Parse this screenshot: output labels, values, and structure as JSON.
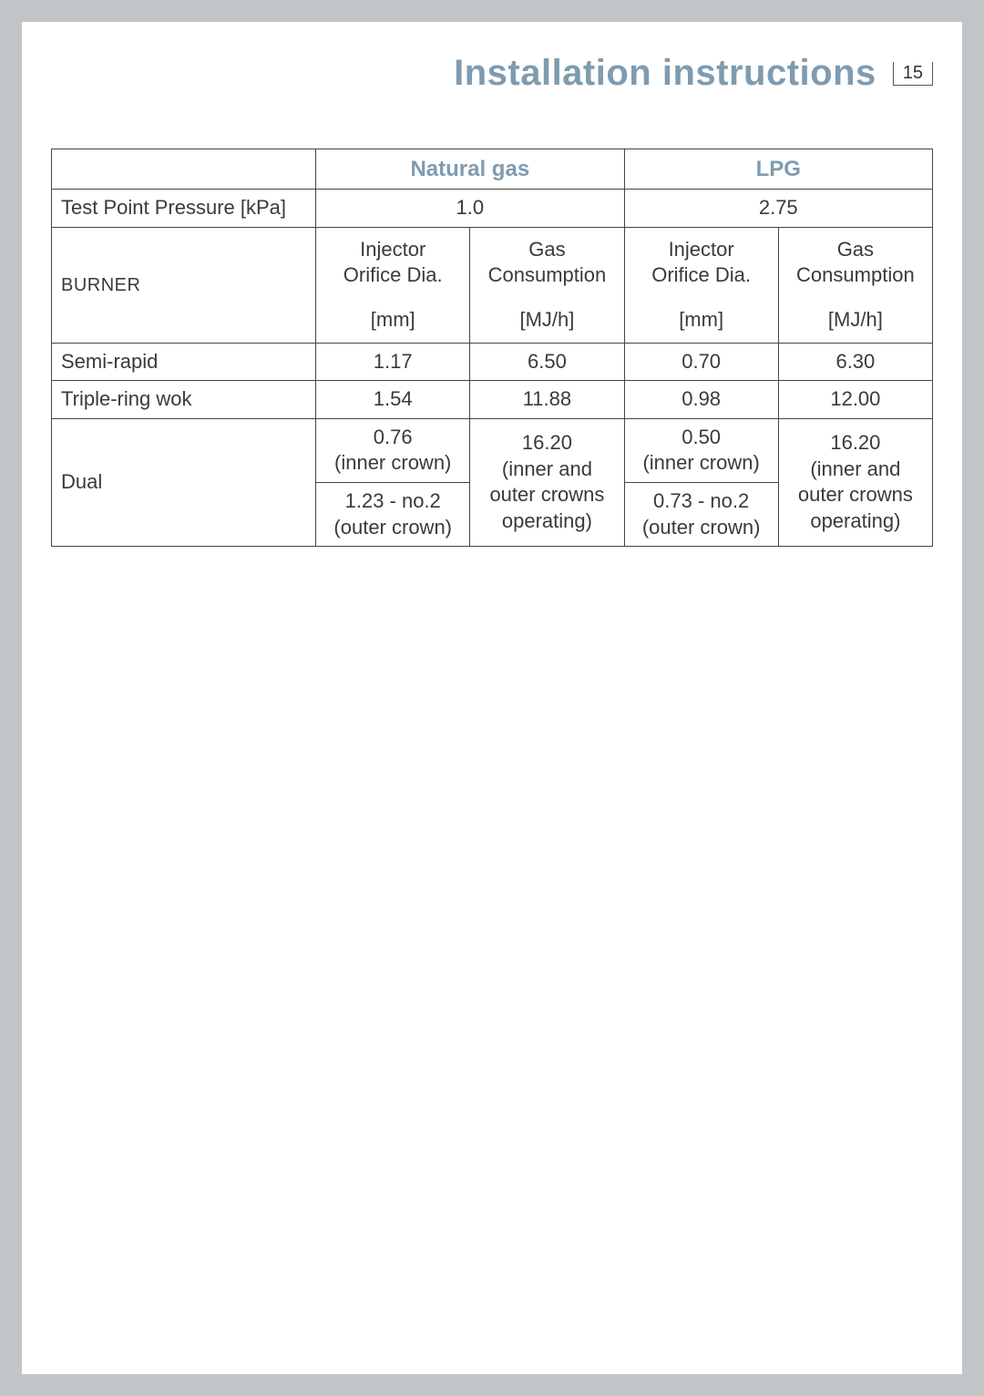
{
  "header": {
    "title": "Installation instructions",
    "page_number": "15"
  },
  "colors": {
    "accent": "#7f9bb0",
    "page_bg": "#ffffff",
    "outer_bg": "#c2c5c8",
    "border": "#444444",
    "text": "#3a3a3a"
  },
  "table": {
    "gas_types": {
      "natural": "Natural gas",
      "lpg": "LPG"
    },
    "pressure_row": {
      "label": "Test Point Pressure [kPa]",
      "natural": "1.0",
      "lpg": "2.75"
    },
    "burner_header": {
      "label": "BURNER",
      "injector_line1": "Injector",
      "injector_line2": "Orifice Dia.",
      "injector_unit": "[mm]",
      "gas_line1": "Gas",
      "gas_line2": "Consumption",
      "gas_unit": "[MJ/h]"
    },
    "rows": {
      "semi_rapid": {
        "label": "Semi-rapid",
        "ng_inj": "1.17",
        "ng_gas": "6.50",
        "lpg_inj": "0.70",
        "lpg_gas": "6.30"
      },
      "triple_ring": {
        "label": "Triple-ring wok",
        "ng_inj": "1.54",
        "ng_gas": "11.88",
        "lpg_inj": "0.98",
        "lpg_gas": "12.00"
      },
      "dual": {
        "label": "Dual",
        "ng_inj_inner_l1": "0.76",
        "ng_inj_inner_l2": "(inner crown)",
        "ng_inj_outer_l1": "1.23 - no.2",
        "ng_inj_outer_l2": "(outer crown)",
        "ng_gas_l1": "16.20",
        "ng_gas_l2": "(inner and",
        "ng_gas_l3": "outer crowns",
        "ng_gas_l4": "operating)",
        "lpg_inj_inner_l1": "0.50",
        "lpg_inj_inner_l2": "(inner crown)",
        "lpg_inj_outer_l1": "0.73 - no.2",
        "lpg_inj_outer_l2": "(outer crown)",
        "lpg_gas_l1": "16.20",
        "lpg_gas_l2": "(inner and",
        "lpg_gas_l3": "outer crowns",
        "lpg_gas_l4": "operating)"
      }
    }
  }
}
